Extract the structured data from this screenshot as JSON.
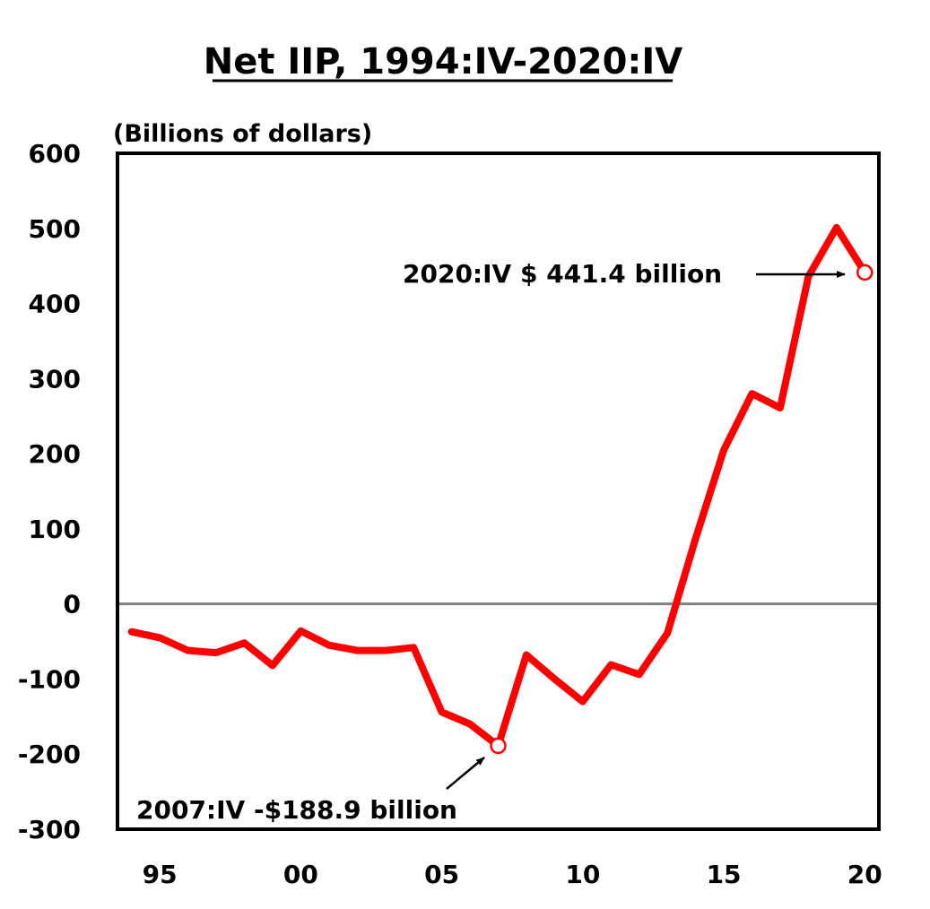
{
  "chart_data": {
    "type": "line",
    "title": "Net IIP, 1994:IV-2020:IV",
    "ylabel": "(Billions of dollars)",
    "xlabel": "",
    "ylim": [
      -300,
      600
    ],
    "xlim": [
      1993.5,
      2020.5
    ],
    "yticks": [
      600,
      500,
      400,
      300,
      200,
      100,
      0,
      -100,
      -200,
      -300
    ],
    "ytick_labels": [
      "600",
      "500",
      "400",
      "300",
      "200",
      "100",
      "0",
      "-100",
      "-200",
      "-300"
    ],
    "xticks": [
      1995,
      2000,
      2005,
      2010,
      2015,
      2020
    ],
    "xtick_labels": [
      "95",
      "00",
      "05",
      "10",
      "15",
      "20"
    ],
    "grid": false,
    "zero_line": true,
    "series": [
      {
        "name": "Net IIP",
        "color": "#ff0000",
        "x": [
          1994,
          1995,
          1996,
          1997,
          1998,
          1999,
          2000,
          2001,
          2002,
          2003,
          2004,
          2005,
          2006,
          2007,
          2008,
          2009,
          2010,
          2011,
          2012,
          2013,
          2014,
          2015,
          2016,
          2017,
          2018,
          2019,
          2020
        ],
        "values": [
          -37,
          -45,
          -62,
          -65,
          -52,
          -82,
          -36,
          -55,
          -62,
          -62,
          -58,
          -144,
          -160,
          -188.9,
          -68,
          -100,
          -130,
          -81,
          -94,
          -39,
          87,
          205,
          280,
          261,
          436,
          501,
          441.4
        ]
      }
    ],
    "annotations": [
      {
        "label": "2020:IV $ 441.4 billion",
        "x": 2020,
        "y": 441.4,
        "arrow": "right"
      },
      {
        "label": "2007:IV -$188.9 billion",
        "x": 2007,
        "y": -188.9,
        "arrow": "up-right"
      }
    ],
    "colors": {
      "line": "#ff0000",
      "zero_line": "#808080",
      "frame": "#000000",
      "marker_fill": "#ffffff"
    }
  }
}
